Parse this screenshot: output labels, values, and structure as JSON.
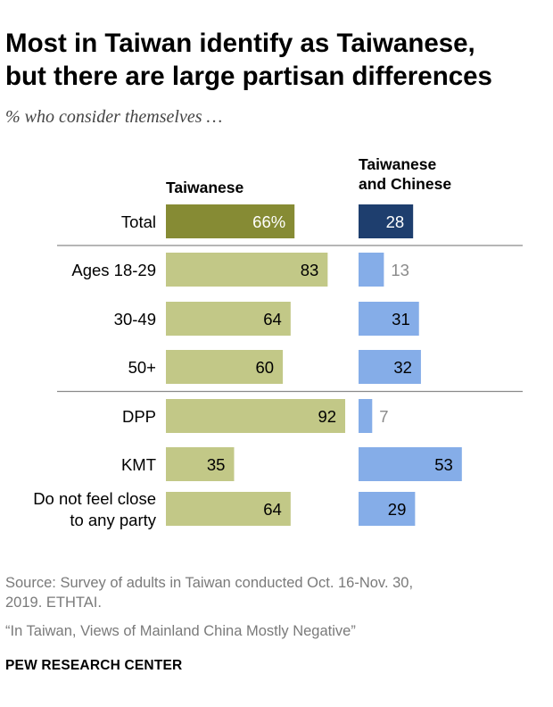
{
  "title_line1": "Most in Taiwan identify as Taiwanese,",
  "title_line2": "but there are large partisan differences",
  "subtitle": "% who consider themselves …",
  "source_line1": "Source: Survey of adults in Taiwan conducted Oct. 16-Nov. 30,",
  "source_line2": "2019. ETHTAI.",
  "report_title": "“In Taiwan, Views of Mainland China Mostly Negative”",
  "brand": "PEW RESEARCH CENTER",
  "colors": {
    "taiwanese_total": "#868b34",
    "taiwanese": "#c2c887",
    "both_total": "#1e3e6e",
    "both": "#85ade8",
    "light_value": "#8a8a8a",
    "divider": "#8a8a8a"
  },
  "chart_data": {
    "type": "bar",
    "series": [
      {
        "name": "Taiwanese",
        "values": [
          66,
          83,
          64,
          60,
          92,
          35,
          64
        ],
        "labels": [
          "66%",
          "83",
          "64",
          "60",
          "92",
          "35",
          "64"
        ]
      },
      {
        "name": "Taiwanese and Chinese",
        "name_lines": [
          "Taiwanese",
          "and Chinese"
        ],
        "values": [
          28,
          13,
          31,
          32,
          7,
          53,
          29
        ],
        "labels": [
          "28",
          "13",
          "31",
          "32",
          "7",
          "53",
          "29"
        ]
      }
    ],
    "categories": [
      "Total",
      "Ages 18-29",
      "30-49",
      "50+",
      "DPP",
      "KMT",
      "Do not feel close to any party"
    ],
    "category_lines": [
      [
        "Total"
      ],
      [
        "Ages 18-29"
      ],
      [
        "30-49"
      ],
      [
        "50+"
      ],
      [
        "DPP"
      ],
      [
        "KMT"
      ],
      [
        "Do not feel close",
        "to any party"
      ]
    ],
    "dividers_after": [
      0,
      3
    ],
    "xlim": [
      0,
      100
    ],
    "grid": false
  }
}
